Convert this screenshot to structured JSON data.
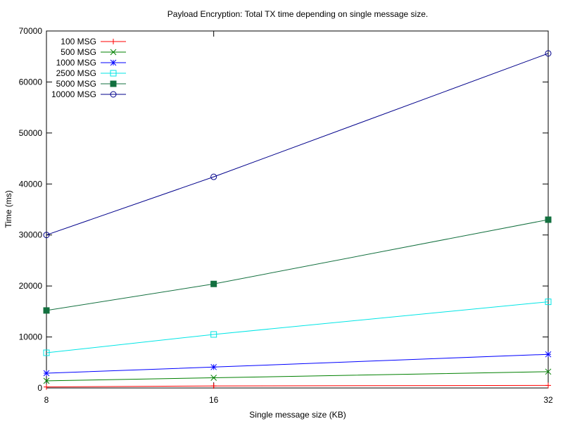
{
  "chart_data": {
    "type": "line",
    "title": "Payload Encryption: Total TX time depending on single message size.",
    "xlabel": "Single message size (KB)",
    "ylabel": "Time (ms)",
    "xlim": [
      8,
      32
    ],
    "ylim": [
      0,
      70000
    ],
    "x_ticks": [
      8,
      16,
      32
    ],
    "y_ticks": [
      0,
      10000,
      20000,
      30000,
      40000,
      50000,
      60000,
      70000
    ],
    "grid": false,
    "legend_position": "top-left",
    "x": [
      8,
      16,
      32
    ],
    "series": [
      {
        "name": "100 MSG",
        "values": [
          200,
          400,
          500
        ],
        "color": "#ff0000",
        "marker": "plus"
      },
      {
        "name": "500 MSG",
        "values": [
          1400,
          2000,
          3200
        ],
        "color": "#008000",
        "marker": "cross"
      },
      {
        "name": "1000 MSG",
        "values": [
          2900,
          4100,
          6600
        ],
        "color": "#0000ff",
        "marker": "star"
      },
      {
        "name": "2500 MSG",
        "values": [
          6900,
          10500,
          16900
        ],
        "color": "#00e5e5",
        "marker": "open-square"
      },
      {
        "name": "5000 MSG",
        "values": [
          15200,
          20400,
          33000
        ],
        "color": "#13703f",
        "marker": "filled-square"
      },
      {
        "name": "10000 MSG",
        "values": [
          30000,
          41400,
          65600
        ],
        "color": "#00008b",
        "marker": "open-circle"
      }
    ]
  }
}
